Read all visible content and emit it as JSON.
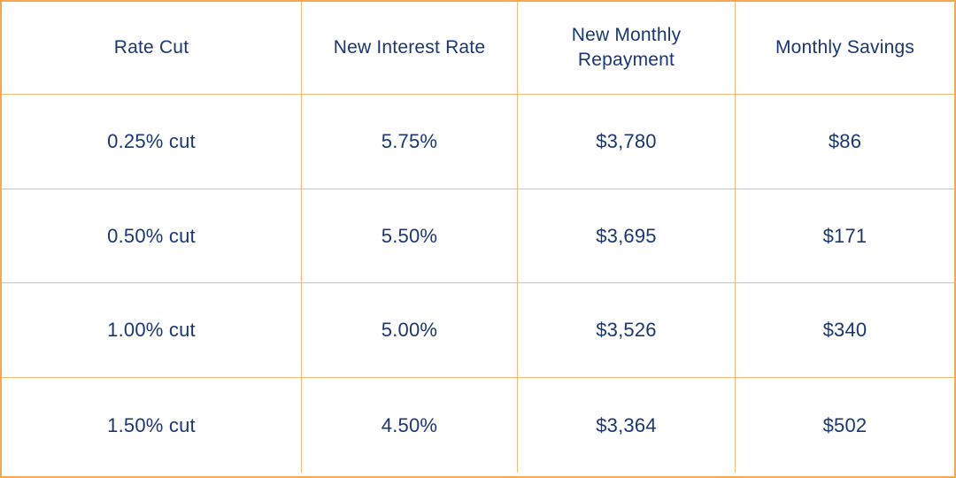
{
  "colors": {
    "border_outer": "#f9a64e",
    "border_inner": "#f9b873",
    "text_navy": "#1a3676",
    "background": "#ffffff"
  },
  "table": {
    "columns": [
      "Rate Cut",
      "New Interest Rate",
      "New Monthly Repayment",
      "Monthly Savings"
    ],
    "rows": [
      [
        "0.25% cut",
        "5.75%",
        "$3,780",
        "$86"
      ],
      [
        "0.50% cut",
        "5.50%",
        "$3,695",
        "$171"
      ],
      [
        "1.00% cut",
        "5.00%",
        "$3,526",
        "$340"
      ],
      [
        "1.50% cut",
        "4.50%",
        "$3,364",
        "$502"
      ]
    ]
  },
  "chart_data": {
    "type": "table",
    "title": "",
    "columns": [
      "Rate Cut",
      "New Interest Rate",
      "New Monthly Repayment",
      "Monthly Savings"
    ],
    "rows": [
      {
        "rate_cut": "0.25% cut",
        "new_interest_rate": "5.75%",
        "new_monthly_repayment": "$3,780",
        "monthly_savings": "$86"
      },
      {
        "rate_cut": "0.50% cut",
        "new_interest_rate": "5.50%",
        "new_monthly_repayment": "$3,695",
        "monthly_savings": "$171"
      },
      {
        "rate_cut": "1.00% cut",
        "new_interest_rate": "5.00%",
        "new_monthly_repayment": "$3,526",
        "monthly_savings": "$340"
      },
      {
        "rate_cut": "1.50% cut",
        "new_interest_rate": "4.50%",
        "new_monthly_repayment": "$3,364",
        "monthly_savings": "$502"
      }
    ],
    "layout": {
      "grid": true,
      "header_row": true,
      "first_column_wider": true
    }
  }
}
